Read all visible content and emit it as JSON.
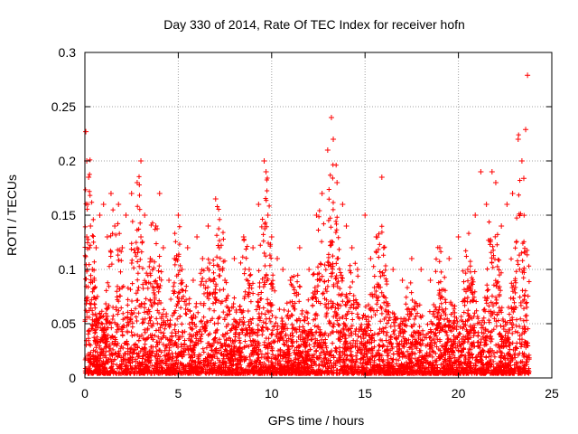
{
  "chart_data": {
    "type": "scatter",
    "title": "Day 330 of 2014, Rate Of TEC Index for receiver hofn",
    "xlabel": "GPS time / hours",
    "ylabel": "ROTI / TECUs",
    "xlim": [
      0,
      25
    ],
    "ylim": [
      0,
      0.3
    ],
    "xticks": [
      0,
      5,
      10,
      15,
      20,
      25
    ],
    "xtick_labels": [
      "0",
      "5",
      "10",
      "15",
      "20",
      "25"
    ],
    "yticks": [
      0,
      0.05,
      0.1,
      0.15,
      0.2,
      0.25,
      0.3
    ],
    "ytick_labels": [
      "0",
      "0.05",
      "0.1",
      "0.15",
      "0.2",
      "0.25",
      "0.3"
    ],
    "grid": true,
    "marker": "+",
    "color": "#ff0000",
    "series": [
      {
        "name": "ROTI",
        "x": [
          0.05,
          0.1,
          0.1,
          0.15,
          0.2,
          0.25,
          0.3,
          0.4,
          0.5,
          0.6,
          0.8,
          1.0,
          1.2,
          1.4,
          1.6,
          1.8,
          2.0,
          2.2,
          2.5,
          2.8,
          3.0,
          3.0,
          3.2,
          3.5,
          3.8,
          4.0,
          4.2,
          4.5,
          4.8,
          5.0,
          5.2,
          5.5,
          5.8,
          6.0,
          6.3,
          6.6,
          7.0,
          7.2,
          7.5,
          8.0,
          8.5,
          8.8,
          9.0,
          9.3,
          9.6,
          9.7,
          9.8,
          10.0,
          10.3,
          10.6,
          11.0,
          11.5,
          12.0,
          12.4,
          12.7,
          13.0,
          13.2,
          13.3,
          13.5,
          13.8,
          14.0,
          14.3,
          14.6,
          15.0,
          15.3,
          15.6,
          15.9,
          16.0,
          16.5,
          17.0,
          17.5,
          18.0,
          18.5,
          19.0,
          19.5,
          20.0,
          20.5,
          20.9,
          21.2,
          21.5,
          21.8,
          22.0,
          22.3,
          22.6,
          22.9,
          23.2,
          23.4,
          23.5,
          23.6,
          23.7
        ],
        "y": [
          0.227,
          0.2,
          0.13,
          0.16,
          0.185,
          0.12,
          0.14,
          0.1,
          0.09,
          0.12,
          0.15,
          0.16,
          0.13,
          0.17,
          0.14,
          0.16,
          0.12,
          0.15,
          0.17,
          0.18,
          0.2,
          0.13,
          0.15,
          0.11,
          0.14,
          0.17,
          0.12,
          0.09,
          0.11,
          0.15,
          0.1,
          0.12,
          0.09,
          0.13,
          0.11,
          0.14,
          0.165,
          0.12,
          0.09,
          0.11,
          0.13,
          0.1,
          0.12,
          0.16,
          0.2,
          0.19,
          0.15,
          0.13,
          0.11,
          0.1,
          0.09,
          0.12,
          0.1,
          0.15,
          0.17,
          0.21,
          0.24,
          0.22,
          0.18,
          0.16,
          0.14,
          0.12,
          0.1,
          0.15,
          0.11,
          0.13,
          0.185,
          0.12,
          0.1,
          0.09,
          0.11,
          0.1,
          0.09,
          0.12,
          0.11,
          0.13,
          0.1,
          0.15,
          0.19,
          0.16,
          0.19,
          0.18,
          0.14,
          0.16,
          0.17,
          0.22,
          0.2,
          0.184,
          0.229,
          0.279
        ]
      }
    ]
  }
}
